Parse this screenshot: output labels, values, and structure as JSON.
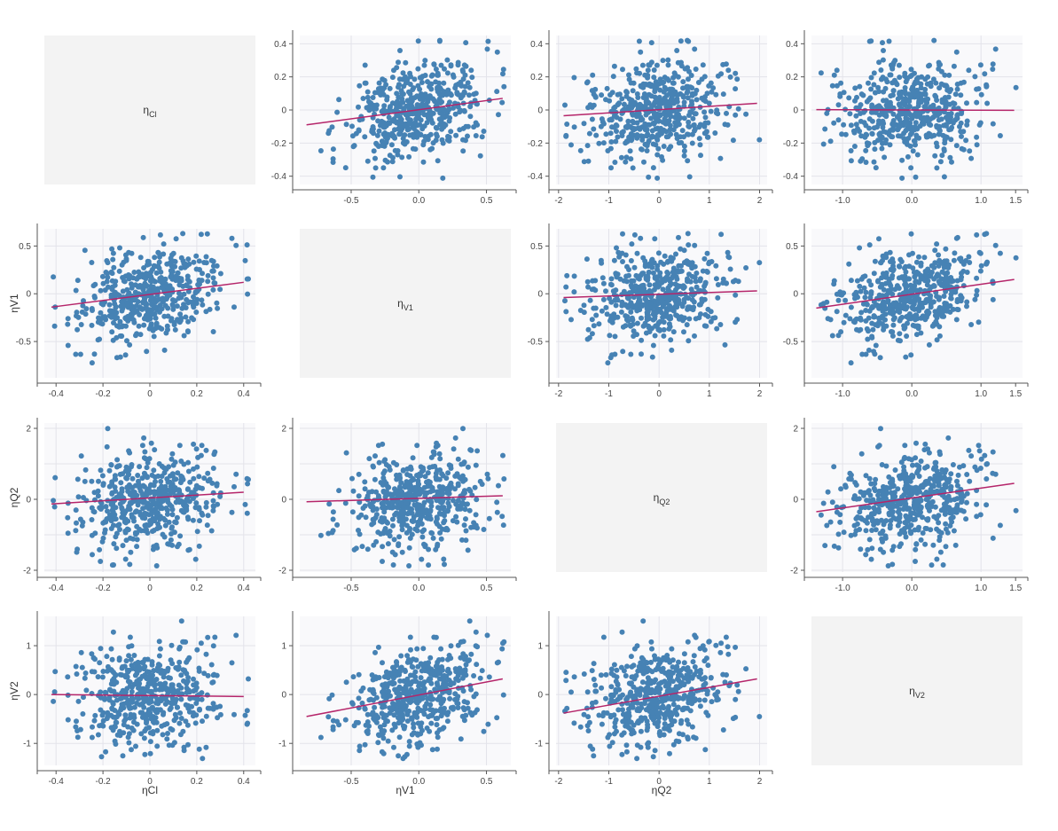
{
  "colors": {
    "point": "#4682b4",
    "trend": "#b5256a",
    "panel_bg": "#f9f9fb",
    "grid": "#e3e3ea",
    "diag_bg": "#f3f3f3"
  },
  "chart_data": {
    "type": "scatter-matrix",
    "variables": [
      {
        "label": "ηCl",
        "greek": "η",
        "sub": "Cl",
        "range": [
          -0.45,
          0.45
        ],
        "ticks": [
          -0.4,
          -0.2,
          0,
          0.2,
          0.4
        ]
      },
      {
        "label": "ηV1",
        "greek": "η",
        "sub": "V1",
        "range": [
          -0.88,
          0.68
        ],
        "ticks": [
          -0.5,
          0,
          0.5
        ]
      },
      {
        "label": "ηQ2",
        "greek": "η",
        "sub": "Q2",
        "range": [
          -2.05,
          2.15
        ],
        "ticks": [
          -2,
          -1,
          0,
          1,
          2
        ]
      },
      {
        "label": "ηV2",
        "greek": "η",
        "sub": "V2",
        "range": [
          -1.45,
          1.6
        ],
        "ticks": [
          -1,
          0,
          1
        ]
      }
    ],
    "tick_labels": {
      "ηCl": [
        "-0.4",
        "-0.2",
        "0",
        "0.2",
        "0.4"
      ],
      "ηV1": [
        "-0.5",
        "0",
        "0.5"
      ],
      "ηQ2": [
        "-2",
        "0",
        "2"
      ],
      "ηV2": [
        "-1",
        "0",
        "1"
      ],
      "ηQ2_x": [
        "-2",
        "-1",
        "0",
        "1",
        "2"
      ],
      "ηV2_x": [
        "-1.0",
        "-0.5",
        "0.0",
        "0.5",
        "1.0",
        "1.5"
      ],
      "ηV1_x": [
        "-0.5",
        "0.0",
        "0.5"
      ],
      "ηCl_y": [
        "-0.4",
        "-0.2",
        "0",
        "0.2",
        "0.4"
      ],
      "ηCl_x": [
        "-0.4",
        "-0.2",
        "0",
        "0.2",
        "0.4"
      ]
    },
    "axis_labels": {
      "left": [
        "ηV1",
        "ηQ2",
        "ηV2"
      ],
      "bottom": [
        "ηCl",
        "ηV1",
        "ηQ2"
      ]
    },
    "trend_lines": [
      {
        "x": "ηCl",
        "y": "ηV1",
        "start": [
          -0.42,
          -0.14
        ],
        "end": [
          0.4,
          0.12
        ]
      },
      {
        "x": "ηCl",
        "y": "ηQ2",
        "start": [
          -0.42,
          -0.13
        ],
        "end": [
          0.4,
          0.2
        ]
      },
      {
        "x": "ηCl",
        "y": "ηV2",
        "start": [
          -0.42,
          0.0
        ],
        "end": [
          0.4,
          -0.04
        ]
      },
      {
        "x": "ηV1",
        "y": "ηCl",
        "start": [
          -0.83,
          -0.09
        ],
        "end": [
          0.62,
          0.07
        ]
      },
      {
        "x": "ηV1",
        "y": "ηQ2",
        "start": [
          -0.83,
          -0.07
        ],
        "end": [
          0.62,
          0.1
        ]
      },
      {
        "x": "ηV1",
        "y": "ηV2",
        "start": [
          -0.83,
          -0.45
        ],
        "end": [
          0.62,
          0.32
        ]
      },
      {
        "x": "ηQ2",
        "y": "ηCl",
        "start": [
          -1.9,
          -0.035
        ],
        "end": [
          1.95,
          0.04
        ]
      },
      {
        "x": "ηQ2",
        "y": "ηV1",
        "start": [
          -1.9,
          -0.04
        ],
        "end": [
          1.95,
          0.03
        ]
      },
      {
        "x": "ηQ2",
        "y": "ηV2",
        "start": [
          -1.9,
          -0.38
        ],
        "end": [
          1.95,
          0.32
        ]
      },
      {
        "x": "ηV2",
        "y": "ηCl",
        "start": [
          -1.38,
          0.002
        ],
        "end": [
          1.48,
          -0.002
        ]
      },
      {
        "x": "ηV2",
        "y": "ηV1",
        "start": [
          -1.38,
          -0.15
        ],
        "end": [
          1.48,
          0.15
        ]
      },
      {
        "x": "ηV2",
        "y": "ηQ2",
        "start": [
          -1.38,
          -0.35
        ],
        "end": [
          1.48,
          0.45
        ]
      }
    ],
    "n_points": 500,
    "sd": {
      "ηCl": 0.15,
      "ηV1": 0.25,
      "ηQ2": 0.7,
      "ηV2": 0.5
    },
    "grid": true
  }
}
